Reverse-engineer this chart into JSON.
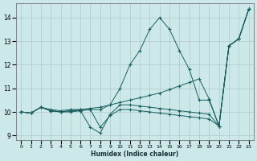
{
  "xlabel": "Humidex (Indice chaleur)",
  "xlim": [
    -0.5,
    23.5
  ],
  "ylim": [
    8.8,
    14.6
  ],
  "yticks": [
    9,
    10,
    11,
    12,
    13,
    14
  ],
  "xticks": [
    0,
    1,
    2,
    3,
    4,
    5,
    6,
    7,
    8,
    9,
    10,
    11,
    12,
    13,
    14,
    15,
    16,
    17,
    18,
    19,
    20,
    21,
    22,
    23
  ],
  "background_color": "#cce8e8",
  "grid_color": "#b0c8c8",
  "line_color": "#1a6060",
  "lines": [
    {
      "x": [
        0,
        1,
        2,
        3,
        4,
        5,
        6,
        7,
        8,
        9,
        10,
        11,
        12,
        13,
        14,
        15,
        16,
        17,
        18,
        19,
        20,
        21,
        22,
        23
      ],
      "y": [
        10.0,
        9.95,
        10.2,
        10.1,
        10.05,
        10.1,
        10.1,
        10.1,
        10.1,
        10.3,
        11.0,
        12.0,
        12.6,
        13.5,
        14.0,
        13.5,
        12.6,
        11.8,
        10.5,
        10.5,
        9.4,
        12.8,
        13.1,
        14.35
      ]
    },
    {
      "x": [
        0,
        1,
        2,
        3,
        4,
        5,
        6,
        7,
        8,
        9,
        10,
        11,
        12,
        13,
        14,
        15,
        16,
        17,
        18,
        19,
        20,
        21,
        22,
        23
      ],
      "y": [
        10.0,
        9.95,
        10.2,
        10.05,
        10.0,
        10.05,
        10.1,
        10.15,
        10.2,
        10.3,
        10.4,
        10.5,
        10.6,
        10.7,
        10.8,
        10.95,
        11.1,
        11.25,
        11.4,
        10.55,
        9.4,
        12.8,
        13.1,
        14.35
      ]
    },
    {
      "x": [
        0,
        1,
        2,
        3,
        4,
        5,
        6,
        7,
        8,
        9,
        10,
        11,
        12,
        13,
        14,
        15,
        16,
        17,
        18,
        19,
        20,
        21,
        22,
        23
      ],
      "y": [
        10.0,
        9.95,
        10.2,
        10.05,
        10.0,
        10.05,
        10.05,
        9.35,
        9.1,
        9.9,
        10.3,
        10.3,
        10.25,
        10.2,
        10.15,
        10.1,
        10.05,
        10.0,
        9.95,
        9.9,
        9.4,
        12.8,
        13.1,
        14.35
      ]
    },
    {
      "x": [
        0,
        1,
        2,
        3,
        4,
        5,
        6,
        7,
        8,
        9,
        10,
        11,
        12,
        13,
        14,
        15,
        16,
        17,
        18,
        19,
        20,
        21,
        22,
        23
      ],
      "y": [
        10.0,
        9.95,
        10.2,
        10.05,
        10.0,
        10.0,
        10.05,
        10.1,
        9.35,
        9.85,
        10.1,
        10.1,
        10.05,
        10.0,
        9.95,
        9.9,
        9.85,
        9.8,
        9.75,
        9.7,
        9.4,
        12.8,
        13.1,
        14.35
      ]
    }
  ]
}
